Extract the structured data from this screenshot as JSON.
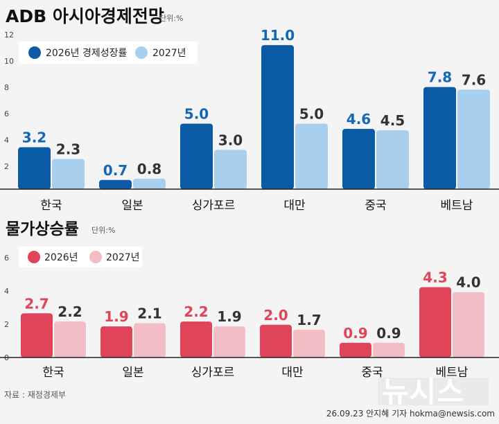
{
  "colors": {
    "gdp_2026": "#0a5aa6",
    "gdp_2027": "#a8cfee",
    "gdp_label_2026": "#1467b3",
    "gdp_label_2027": "#333333",
    "cpi_2026": "#e04458",
    "cpi_2027": "#f2bdc4",
    "cpi_label_2026": "#e04458",
    "cpi_label_2027": "#333333",
    "axis": "#222222",
    "gridline": "#cfcfcf"
  },
  "chart_data": [
    {
      "type": "bar",
      "title": "ADB 아시아경제전망",
      "unit": "단위:%",
      "categories": [
        "한국",
        "일본",
        "싱가포르",
        "대만",
        "중국",
        "베트남"
      ],
      "series": [
        {
          "name": "2026년 경제성장률",
          "values": [
            3.2,
            0.7,
            5.0,
            11.0,
            4.6,
            7.8
          ],
          "labels": [
            "3.2",
            "0.7",
            "5.0",
            "11.0",
            "4.6",
            "7.8"
          ]
        },
        {
          "name": "2027년",
          "values": [
            2.3,
            0.8,
            3.0,
            5.0,
            4.5,
            7.6
          ],
          "labels": [
            "2.3",
            "0.8",
            "3.0",
            "5.0",
            "4.5",
            "7.6"
          ]
        }
      ],
      "yticks": [
        "2",
        "4",
        "6",
        "8",
        "10",
        "12"
      ],
      "ylim": [
        0,
        12
      ],
      "legend": "top-left",
      "grid": false
    },
    {
      "type": "bar",
      "title": "물가상승률",
      "unit": "단위:%",
      "categories": [
        "한국",
        "일본",
        "싱가포르",
        "대만",
        "중국",
        "베트남"
      ],
      "series": [
        {
          "name": "2026년",
          "values": [
            2.7,
            1.9,
            2.2,
            2.0,
            0.9,
            4.3
          ],
          "labels": [
            "2.7",
            "1.9",
            "2.2",
            "2.0",
            "0.9",
            "4.3"
          ]
        },
        {
          "name": "2027년",
          "values": [
            2.2,
            2.1,
            1.9,
            1.7,
            0.9,
            4.0
          ],
          "labels": [
            "2.2",
            "2.1",
            "1.9",
            "1.7",
            "0.9",
            "4.0"
          ]
        }
      ],
      "yticks": [
        "0",
        "2",
        "4",
        "6"
      ],
      "ylim": [
        0,
        6
      ],
      "legend": "top-left",
      "grid": false
    }
  ],
  "footer": {
    "source": "자료 : 재정경제부",
    "credit": "26.09.23 안지혜 기자 hokma@newsis.com",
    "watermark": "뉴시스"
  }
}
